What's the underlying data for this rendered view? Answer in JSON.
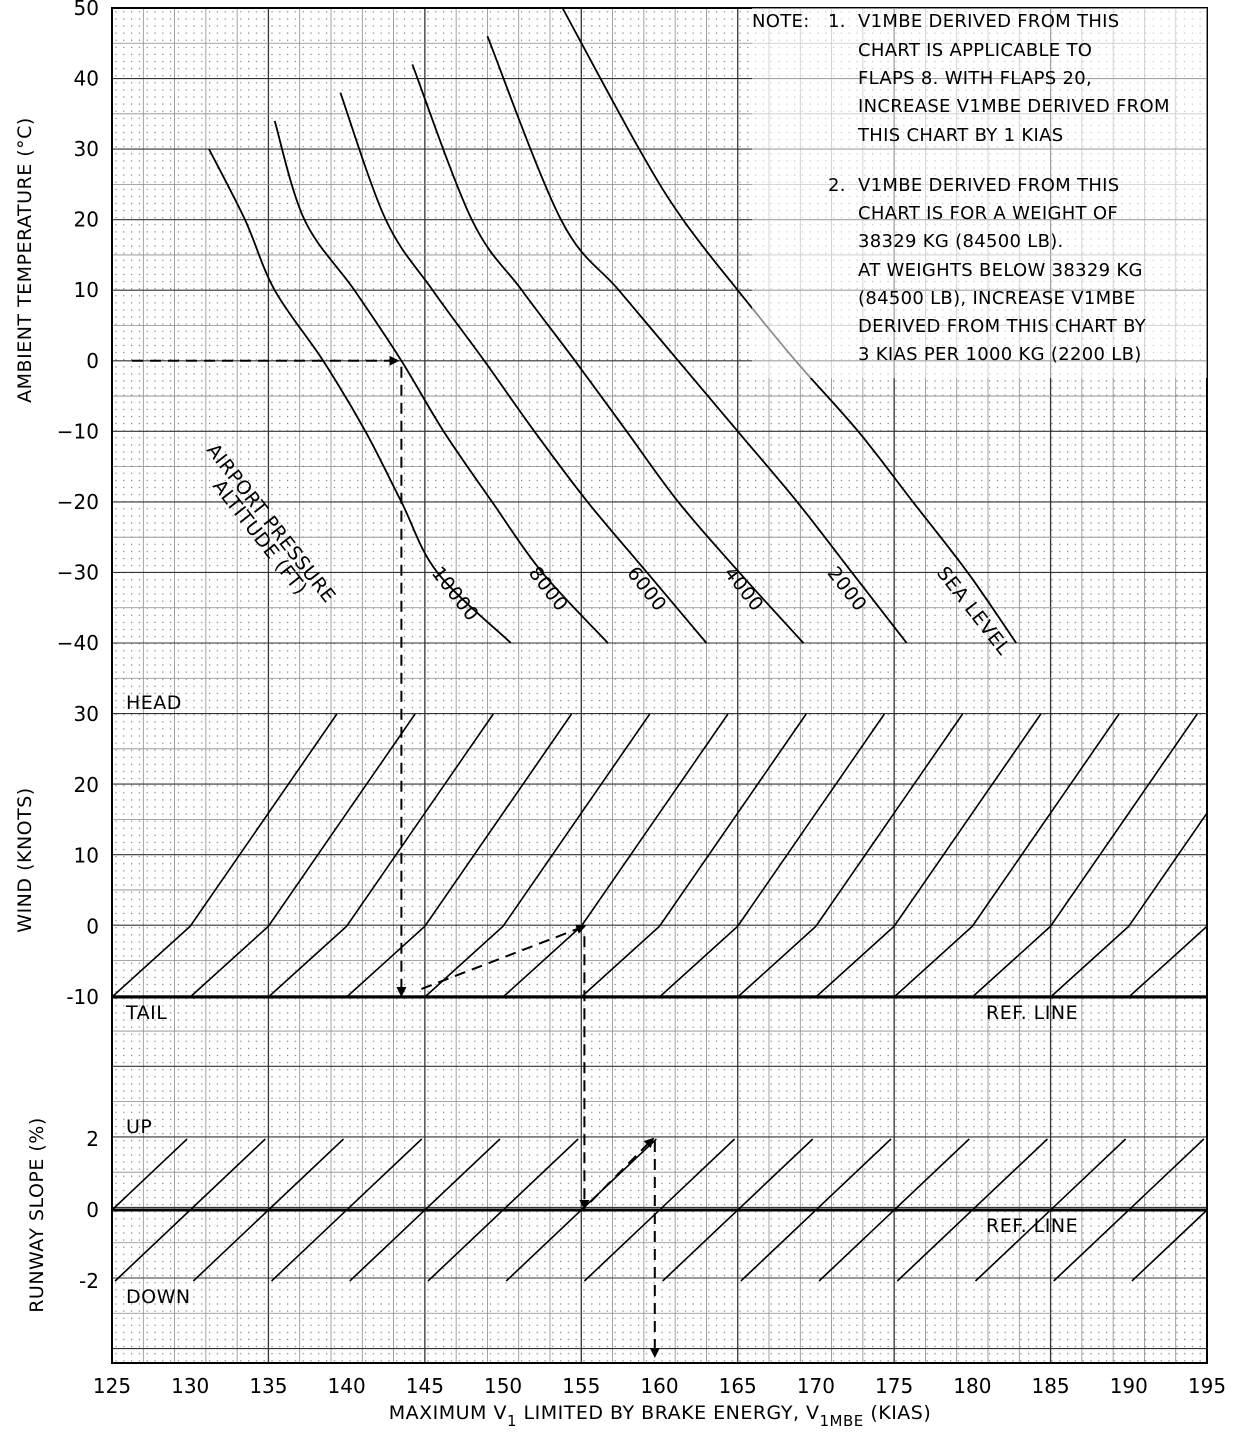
{
  "chart_data": {
    "type": "line",
    "title": "",
    "xlabel_parts": [
      "MAXIMUM V",
      "1",
      " LIMITED BY BRAKE ENERGY, V",
      "1MBE",
      " (KIAS)"
    ],
    "x_ticks": [
      125,
      130,
      135,
      140,
      145,
      150,
      155,
      160,
      165,
      170,
      175,
      180,
      185,
      190,
      195
    ],
    "xlim": [
      125,
      195
    ],
    "panels": {
      "temperature": {
        "ylabel": "AMBIENT TEMPERATURE (°C)",
        "ylim": [
          -40,
          50
        ],
        "y_ticks": [
          "50",
          "40",
          "30",
          "20",
          "10",
          "0",
          "−10",
          "−20",
          "−30",
          "−40"
        ],
        "y_tick_values": [
          50,
          40,
          30,
          20,
          10,
          0,
          -10,
          -20,
          -30,
          -40
        ],
        "group_label": [
          "AIRPORT PRESSURE",
          "ALTITUDE (FT)"
        ],
        "series": [
          {
            "name": "10000",
            "points": [
              [
                131.2,
                30
              ],
              [
                133.5,
                20
              ],
              [
                135.4,
                10
              ],
              [
                138.5,
                0
              ],
              [
                141.2,
                -10
              ],
              [
                143.5,
                -20
              ],
              [
                145.8,
                -30
              ],
              [
                150.5,
                -40
              ]
            ]
          },
          {
            "name": "8000",
            "points": [
              [
                135.4,
                34
              ],
              [
                137.3,
                20
              ],
              [
                140.5,
                10
              ],
              [
                143.5,
                0
              ],
              [
                146.2,
                -10
              ],
              [
                149.3,
                -20
              ],
              [
                152.5,
                -30
              ],
              [
                156.7,
                -40
              ]
            ]
          },
          {
            "name": "6000",
            "points": [
              [
                139.6,
                38
              ],
              [
                142.5,
                20
              ],
              [
                145.5,
                10
              ],
              [
                148.8,
                0
              ],
              [
                152.0,
                -10
              ],
              [
                155.4,
                -20
              ],
              [
                159.2,
                -30
              ],
              [
                163.0,
                -40
              ]
            ]
          },
          {
            "name": "4000",
            "points": [
              [
                144.2,
                42
              ],
              [
                148.0,
                20
              ],
              [
                151.2,
                10
              ],
              [
                154.6,
                0
              ],
              [
                157.9,
                -10
              ],
              [
                161.2,
                -20
              ],
              [
                165.1,
                -30
              ],
              [
                169.2,
                -40
              ]
            ]
          },
          {
            "name": "2000",
            "points": [
              [
                149.0,
                46
              ],
              [
                153.7,
                20
              ],
              [
                157.4,
                10
              ],
              [
                161.2,
                0
              ],
              [
                165.0,
                -10
              ],
              [
                168.8,
                -20
              ],
              [
                172.3,
                -30
              ],
              [
                175.8,
                -40
              ]
            ]
          },
          {
            "name": "SEA LEVEL",
            "points": [
              [
                153.8,
                50
              ],
              [
                158.7,
                30
              ],
              [
                161.5,
                20
              ],
              [
                165.0,
                10
              ],
              [
                168.7,
                0
              ],
              [
                172.7,
                -10
              ],
              [
                176.2,
                -20
              ],
              [
                179.7,
                -30
              ],
              [
                182.8,
                -40
              ]
            ]
          }
        ]
      },
      "wind": {
        "ylabel": "WIND (KNOTS)",
        "ylim": [
          -10,
          30
        ],
        "y_ticks": [
          "30",
          "20",
          "10",
          "0",
          "-10"
        ],
        "y_tick_values": [
          30,
          20,
          10,
          0,
          -10
        ],
        "head_label": "HEAD",
        "tail_label": "TAIL",
        "ref_label": "REF. LINE",
        "guide_tail_values": [
          125,
          130,
          135,
          140,
          145,
          150,
          155,
          160,
          165,
          170,
          175,
          180,
          185,
          190,
          195,
          200
        ],
        "headwind_knots_per_kias": 3.2,
        "tailwind_knots_per_kias": 2.0
      },
      "slope": {
        "ylabel": "RUNWAY SLOPE (%)",
        "ylim": [
          -3.7,
          2
        ],
        "y_ticks": [
          "2",
          "0",
          "-2"
        ],
        "y_tick_values": [
          2,
          0,
          -2
        ],
        "up_label": "UP",
        "down_label": "DOWN",
        "ref_label": "REF. LINE",
        "guide_zero_values": [
          125,
          130,
          135,
          140,
          145,
          150,
          155,
          160,
          165,
          170,
          175,
          180,
          185,
          190,
          195
        ],
        "kias_per_percent": 2.4
      }
    },
    "example": {
      "temperature_c": 0,
      "v_after_altitude": 143.5,
      "v_after_wind": 155.2,
      "v1mbe_result": 159.7
    },
    "notes": [
      "NOTE:",
      "1.",
      "V1MBE DERIVED FROM THIS",
      "CHART IS APPLICABLE TO",
      "FLAPS 8.  WITH FLAPS 20,",
      "INCREASE V1MBE DERIVED FROM",
      "THIS CHART BY 1 KIAS",
      "2.",
      "V1MBE DERIVED FROM THIS",
      "CHART IS FOR A WEIGHT OF",
      "38329 KG (84500 LB).",
      "AT WEIGHTS BELOW 38329 KG",
      "(84500 LB), INCREASE V1MBE",
      "DERIVED FROM THIS CHART BY",
      "3 KIAS PER 1000 KG (2200 LB)"
    ]
  }
}
